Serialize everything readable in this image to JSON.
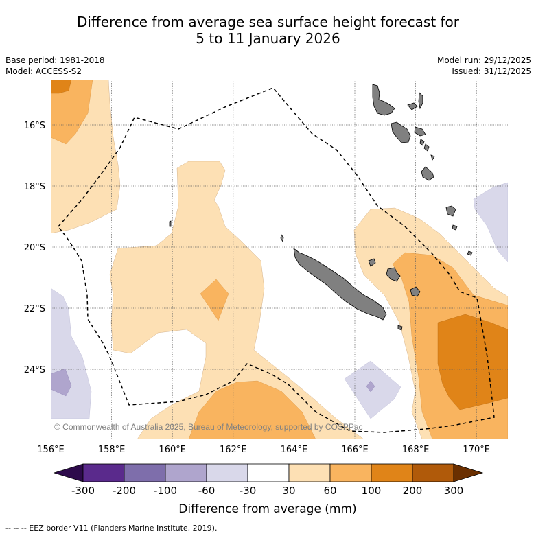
{
  "title": {
    "line1": "Difference from average sea surface height forecast for",
    "line2": "5 to 11 January 2026"
  },
  "meta": {
    "base_period": "Base period: 1981-2018",
    "model": "Model: ACCESS-S2",
    "model_run": "Model run: 29/12/2025",
    "issued": "Issued: 31/12/2025"
  },
  "axes": {
    "x_ticks": [
      "156°E",
      "158°E",
      "160°E",
      "162°E",
      "164°E",
      "166°E",
      "168°E",
      "170°E"
    ],
    "y_ticks": [
      "16°S",
      "18°S",
      "20°S",
      "22°S",
      "24°S"
    ]
  },
  "copyright": "© Commonwealth of Australia 2025, Bureau of Meteorology, supported by COSPPac",
  "colorbar": {
    "ticks": [
      "-300",
      "-200",
      "-100",
      "-60",
      "-30",
      "30",
      "60",
      "100",
      "200",
      "300"
    ],
    "label": "Difference from average (mm)",
    "colors": {
      "under": "#2d0a4b",
      "c1": "#5a2a8c",
      "c2": "#7e6eab",
      "c3": "#afa5cd",
      "c4": "#d9d8ea",
      "c5": "#ffffff",
      "c6": "#fde0b4",
      "c7": "#f9b45f",
      "c8": "#e08418",
      "c9": "#b05a0a",
      "over": "#6a2f00"
    }
  },
  "footer": "--  --  -- EEZ border V11 (Flanders Marine Institute, 2019)."
}
